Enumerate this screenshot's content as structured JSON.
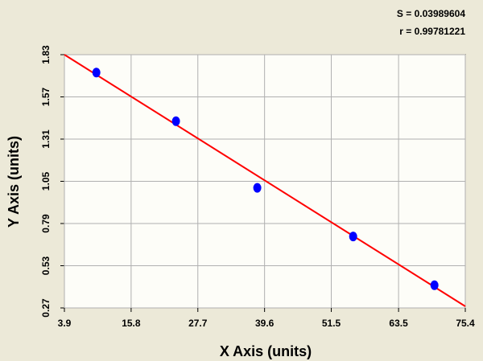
{
  "chart_data": {
    "type": "scatter",
    "x_label": "X Axis (units)",
    "y_label": "Y Axis (units)",
    "annotations": [
      "S = 0.03989604",
      "r = 0.99781221"
    ],
    "xlim": [
      3.9,
      75.4
    ],
    "xticks": [
      3.9,
      15.8,
      27.7,
      39.6,
      51.5,
      63.5,
      75.4
    ],
    "ylim": [
      0.27,
      1.83
    ],
    "yticks": [
      0.27,
      0.53,
      0.79,
      1.05,
      1.31,
      1.57,
      1.83
    ],
    "grid": true,
    "series": [
      {
        "color": "#0000ff",
        "x": [
          9.6,
          23.8,
          38.3,
          55.4,
          69.9
        ],
        "values": [
          1.72,
          1.42,
          1.01,
          0.71,
          0.41
        ]
      }
    ],
    "fit": {
      "color": "#ff0000",
      "x": [
        3.9,
        75.4
      ],
      "values": [
        1.83,
        0.28
      ]
    }
  }
}
